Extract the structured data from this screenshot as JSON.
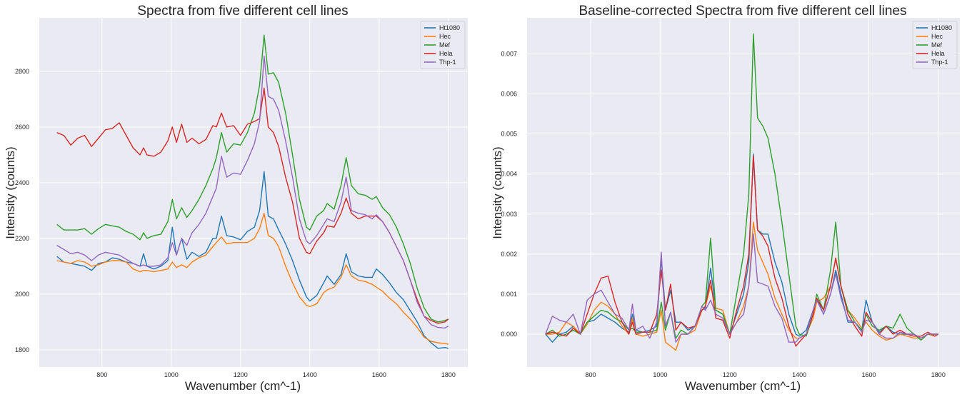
{
  "chart_data": [
    {
      "type": "line",
      "title": "Spectra from five different cell lines",
      "xlabel": "Wavenumber (cm^-1)",
      "ylabel": "Intensity (counts)",
      "xlim": [
        619,
        1856
      ],
      "ylim": [
        1738,
        2992
      ],
      "xticks": [
        800,
        1000,
        1200,
        1400,
        1600,
        1800
      ],
      "yticks": [
        1800,
        2000,
        2200,
        2400,
        2600,
        2800
      ],
      "grid": true,
      "legend": "top-right",
      "x": [
        670,
        690,
        710,
        730,
        750,
        770,
        790,
        810,
        830,
        850,
        870,
        890,
        910,
        920,
        930,
        950,
        970,
        990,
        1003,
        1015,
        1030,
        1045,
        1060,
        1080,
        1100,
        1120,
        1130,
        1145,
        1160,
        1180,
        1200,
        1220,
        1240,
        1255,
        1268,
        1280,
        1295,
        1310,
        1330,
        1350,
        1370,
        1390,
        1400,
        1420,
        1440,
        1450,
        1470,
        1490,
        1505,
        1520,
        1540,
        1560,
        1580,
        1592,
        1610,
        1630,
        1650,
        1670,
        1690,
        1710,
        1730,
        1750,
        1770,
        1790,
        1800
      ],
      "series": [
        {
          "name": "Ht1080",
          "color": "#1f77b4",
          "values": [
            2135,
            2115,
            2110,
            2105,
            2100,
            2085,
            2110,
            2115,
            2130,
            2125,
            2115,
            2110,
            2100,
            2145,
            2100,
            2090,
            2100,
            2120,
            2240,
            2140,
            2200,
            2125,
            2150,
            2135,
            2150,
            2200,
            2200,
            2280,
            2210,
            2205,
            2195,
            2225,
            2240,
            2300,
            2440,
            2280,
            2270,
            2230,
            2180,
            2120,
            2050,
            1990,
            1975,
            1995,
            2040,
            2065,
            2035,
            2070,
            2145,
            2080,
            2065,
            2060,
            2060,
            2090,
            2070,
            2040,
            2005,
            1980,
            1940,
            1900,
            1850,
            1825,
            1805,
            1808,
            1805
          ]
        },
        {
          "name": "Hec",
          "color": "#ff7f0e",
          "values": [
            2120,
            2115,
            2110,
            2120,
            2115,
            2100,
            2105,
            2115,
            2120,
            2120,
            2115,
            2090,
            2080,
            2085,
            2085,
            2080,
            2085,
            2090,
            2115,
            2095,
            2105,
            2095,
            2115,
            2130,
            2140,
            2170,
            2185,
            2205,
            2180,
            2185,
            2185,
            2185,
            2200,
            2235,
            2290,
            2210,
            2200,
            2170,
            2100,
            2040,
            1990,
            1960,
            1955,
            1965,
            2005,
            2015,
            2025,
            2060,
            2105,
            2065,
            2050,
            2045,
            2035,
            2025,
            2010,
            1985,
            1965,
            1935,
            1910,
            1880,
            1845,
            1830,
            1825,
            1822,
            1820
          ]
        },
        {
          "name": "Mef",
          "color": "#2ca02c",
          "values": [
            2250,
            2230,
            2230,
            2230,
            2235,
            2215,
            2235,
            2250,
            2245,
            2240,
            2225,
            2215,
            2195,
            2220,
            2200,
            2210,
            2215,
            2260,
            2340,
            2270,
            2310,
            2275,
            2300,
            2340,
            2390,
            2450,
            2490,
            2580,
            2510,
            2540,
            2535,
            2580,
            2650,
            2750,
            2930,
            2790,
            2795,
            2760,
            2650,
            2500,
            2340,
            2240,
            2230,
            2280,
            2300,
            2325,
            2305,
            2390,
            2490,
            2390,
            2360,
            2355,
            2340,
            2350,
            2310,
            2285,
            2240,
            2180,
            2110,
            2020,
            1950,
            1910,
            1900,
            1905,
            1910
          ]
        },
        {
          "name": "Hela",
          "color": "#d62728",
          "values": [
            2580,
            2570,
            2535,
            2560,
            2570,
            2530,
            2560,
            2590,
            2595,
            2615,
            2570,
            2525,
            2500,
            2525,
            2500,
            2495,
            2510,
            2550,
            2600,
            2545,
            2610,
            2545,
            2560,
            2540,
            2555,
            2605,
            2600,
            2650,
            2600,
            2605,
            2570,
            2610,
            2620,
            2630,
            2740,
            2600,
            2580,
            2530,
            2420,
            2330,
            2200,
            2150,
            2145,
            2190,
            2220,
            2245,
            2240,
            2290,
            2345,
            2290,
            2270,
            2280,
            2280,
            2280,
            2260,
            2220,
            2170,
            2120,
            2050,
            1980,
            1920,
            1905,
            1895,
            1900,
            1910
          ]
        },
        {
          "name": "Thp-1",
          "color": "#9467bd",
          "values": [
            2175,
            2160,
            2145,
            2150,
            2140,
            2120,
            2140,
            2150,
            2145,
            2140,
            2125,
            2110,
            2100,
            2105,
            2100,
            2100,
            2105,
            2130,
            2185,
            2140,
            2200,
            2175,
            2220,
            2250,
            2290,
            2350,
            2380,
            2495,
            2420,
            2435,
            2430,
            2480,
            2540,
            2620,
            2855,
            2710,
            2700,
            2660,
            2550,
            2420,
            2270,
            2190,
            2180,
            2210,
            2250,
            2270,
            2260,
            2330,
            2420,
            2300,
            2290,
            2285,
            2270,
            2285,
            2260,
            2220,
            2170,
            2120,
            2050,
            1970,
            1920,
            1890,
            1880,
            1878,
            1885
          ]
        }
      ]
    },
    {
      "type": "line",
      "title": "Baseline-corrected Spectra from five different cell lines",
      "xlabel": "Wavenumber (cm^-1)",
      "ylabel": "Intensity (counts)",
      "xlim": [
        617,
        1862
      ],
      "ylim": [
        -0.00082,
        0.0079
      ],
      "xticks": [
        800,
        1000,
        1200,
        1400,
        1600,
        1800
      ],
      "yticks": [
        "0.000",
        "0.001",
        "0.002",
        "0.003",
        "0.004",
        "0.005",
        "0.006",
        "0.007"
      ],
      "grid": true,
      "legend": "top-right",
      "x": [
        670,
        690,
        710,
        730,
        750,
        770,
        790,
        810,
        830,
        850,
        870,
        890,
        910,
        920,
        930,
        950,
        970,
        990,
        1003,
        1015,
        1030,
        1045,
        1060,
        1080,
        1100,
        1120,
        1130,
        1145,
        1160,
        1180,
        1200,
        1220,
        1240,
        1255,
        1268,
        1280,
        1295,
        1310,
        1330,
        1350,
        1370,
        1390,
        1400,
        1420,
        1440,
        1450,
        1470,
        1490,
        1505,
        1520,
        1540,
        1560,
        1580,
        1592,
        1610,
        1630,
        1650,
        1670,
        1690,
        1710,
        1730,
        1750,
        1770,
        1790,
        1800
      ],
      "series": [
        {
          "name": "Ht1080",
          "color": "#1f77b4",
          "values": [
            0.0,
            -0.0002,
            0.0,
            5e-05,
            0.0002,
            0.0,
            0.0003,
            0.00035,
            0.0005,
            0.0004,
            0.0003,
            0.00015,
            5e-05,
            0.0005,
            0.0001,
            5e-05,
            0.0001,
            0.0002,
            0.0019,
            0.0006,
            0.0011,
            0.0003,
            0.0003,
            0.0001,
            0.0002,
            0.0006,
            0.00065,
            0.00165,
            0.0006,
            0.0005,
            0.0,
            0.0005,
            0.001,
            0.0018,
            0.0045,
            0.0026,
            0.0025,
            0.0025,
            0.0018,
            0.0013,
            0.0005,
            0.0,
            -5e-05,
            0.0001,
            0.0006,
            0.0009,
            0.0005,
            0.001,
            0.0016,
            0.001,
            0.0003,
            0.0003,
            0.0001,
            0.00085,
            0.0003,
            5e-05,
            0.0002,
            5e-05,
            0.0,
            0.0,
            0.0,
            -0.0001,
            0.0,
            0.0,
            0.0
          ]
        },
        {
          "name": "Hec",
          "color": "#ff7f0e",
          "values": [
            0.0,
            0.0,
            5e-05,
            0.0003,
            0.0002,
            0.0,
            0.00025,
            0.0006,
            0.0008,
            0.0007,
            0.0005,
            0.0002,
            0.0,
            0.0004,
            0.0,
            -5e-05,
            0.0,
            5e-05,
            0.0006,
            -0.0002,
            -0.0003,
            -0.0004,
            0.0,
            0.0,
            0.0001,
            0.0006,
            0.0007,
            0.0012,
            0.00065,
            0.0006,
            0.0,
            0.0003,
            0.0007,
            0.0012,
            0.0028,
            0.0021,
            0.0018,
            0.0015,
            0.0009,
            0.0005,
            0.0001,
            -0.0001,
            -0.0001,
            0.0,
            0.0004,
            0.0008,
            0.0009,
            0.0012,
            0.0019,
            0.0012,
            0.0006,
            0.0004,
            0.00015,
            0.0003,
            0.0001,
            -5e-05,
            -0.00015,
            -0.0001,
            0.0,
            -5e-05,
            -0.0001,
            -0.0001,
            0.0,
            -5e-05,
            0.0
          ]
        },
        {
          "name": "Mef",
          "color": "#2ca02c",
          "values": [
            0.0,
            0.0001,
            -5e-05,
            0.0,
            0.0001,
            0.0,
            0.0003,
            0.00045,
            0.0006,
            0.00055,
            0.0004,
            0.0003,
            0.0001,
            0.00015,
            5e-05,
            5e-05,
            5e-05,
            0.0001,
            0.0008,
            0.0001,
            0.00055,
            -0.0001,
            0.0001,
            0.0,
            0.0002,
            0.0007,
            0.0008,
            0.0024,
            0.0006,
            0.0005,
            0.0,
            0.001,
            0.002,
            0.0035,
            0.0075,
            0.0054,
            0.0052,
            0.0049,
            0.004,
            0.0028,
            0.0015,
            0.0002,
            0.0,
            -5e-05,
            0.0005,
            0.001,
            0.0006,
            0.0016,
            0.0028,
            0.0012,
            0.0006,
            0.0003,
            0.0001,
            0.0005,
            0.0002,
            0.0001,
            0.0002,
            0.00015,
            0.0005,
            0.00015,
            0.0,
            -0.00015,
            0.0,
            0.0,
            0.0
          ]
        },
        {
          "name": "Hela",
          "color": "#d62728",
          "values": [
            0.0,
            5e-05,
            0.0,
            -5e-05,
            0.00015,
            0.0,
            0.0005,
            0.001,
            0.0014,
            0.00145,
            0.0008,
            0.0003,
            0.0,
            0.0003,
            0.0,
            5e-05,
            5e-05,
            0.0005,
            0.0016,
            0.0006,
            0.00125,
            0.0001,
            0.0003,
            0.00015,
            0.0002,
            0.0006,
            0.0007,
            0.00135,
            0.0004,
            0.00035,
            -0.0001,
            0.0006,
            0.0012,
            0.002,
            0.00445,
            0.0026,
            0.00245,
            0.0022,
            0.0014,
            0.0009,
            0.0002,
            -0.0003,
            -0.0002,
            0.0,
            0.0005,
            0.0009,
            0.0006,
            0.0012,
            0.0019,
            0.0012,
            0.0005,
            0.0002,
            -5e-05,
            0.00055,
            0.0003,
            0.0,
            0.0002,
            0.0,
            0.0001,
            0.0,
            -5e-05,
            -5e-05,
            5e-05,
            -5e-05,
            0.0
          ]
        },
        {
          "name": "Thp-1",
          "color": "#9467bd",
          "values": [
            0.0,
            0.00045,
            0.00035,
            0.0003,
            0.0005,
            0.0,
            0.00085,
            0.001,
            0.0011,
            0.0008,
            0.0005,
            0.0004,
            0.0001,
            0.00075,
            0.0001,
            0.0002,
            -0.0001,
            0.0003,
            0.00205,
            0.0002,
            0.00055,
            -0.0002,
            0.0,
            0.0,
            0.0002,
            0.0007,
            0.0006,
            0.00085,
            0.0005,
            0.0004,
            0.0,
            0.0003,
            0.0005,
            0.0012,
            0.0025,
            0.0013,
            0.00125,
            0.0012,
            0.0007,
            0.0004,
            -0.0002,
            -0.0002,
            -0.0001,
            0.0,
            0.0006,
            0.00085,
            0.0005,
            0.001,
            0.0015,
            0.0009,
            0.00035,
            0.0003,
            5e-05,
            0.00035,
            0.0003,
            0.0,
            -0.0001,
            -0.0001,
            5e-05,
            0.0,
            0.0,
            -0.0001,
            0.0,
            0.0,
            0.0
          ]
        }
      ]
    }
  ]
}
